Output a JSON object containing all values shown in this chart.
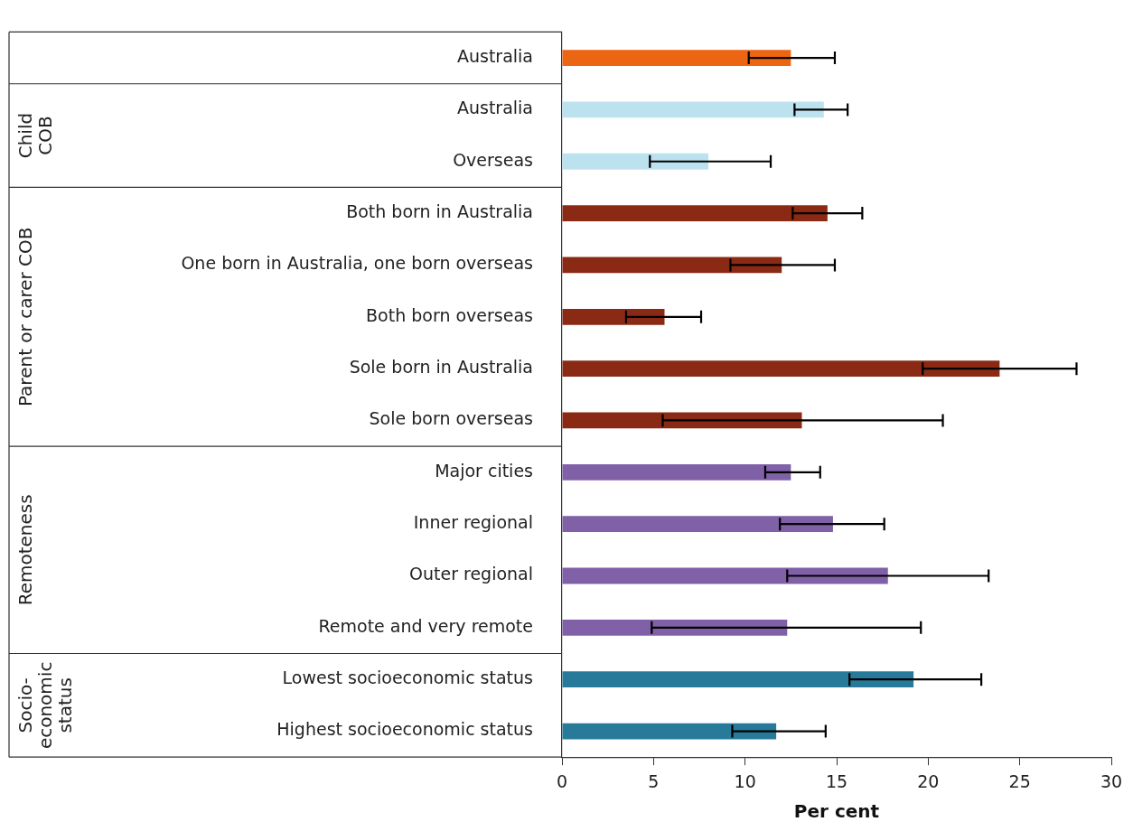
{
  "chart_data": {
    "type": "bar",
    "orientation": "horizontal",
    "xlabel": "Per cent",
    "categories": [
      "Australia",
      "Australia",
      "Overseas",
      "Both born in Australia",
      "One born in Australia, one born overseas",
      "Both born overseas",
      "Sole born in Australia",
      "Sole born overseas",
      "Major cities",
      "Inner regional",
      "Outer regional",
      "Remote and very remote",
      "Lowest socioeconomic status",
      "Highest socioeconomic status"
    ],
    "series": [
      {
        "color": "#ec6513",
        "values": [
          12.5,
          null,
          null,
          null,
          null,
          null,
          null,
          null,
          null,
          null,
          null,
          null,
          null,
          null
        ],
        "errors": [
          [
            10.2,
            14.9
          ],
          null,
          null,
          null,
          null,
          null,
          null,
          null,
          null,
          null,
          null,
          null,
          null,
          null
        ]
      },
      {
        "color": "#bde2ef",
        "values": [
          null,
          14.3,
          8.0,
          null,
          null,
          null,
          null,
          null,
          null,
          null,
          null,
          null,
          null,
          null
        ],
        "errors": [
          null,
          [
            12.7,
            15.6
          ],
          [
            4.8,
            11.4
          ],
          null,
          null,
          null,
          null,
          null,
          null,
          null,
          null,
          null,
          null,
          null
        ]
      },
      {
        "color": "#8b2a14",
        "values": [
          null,
          null,
          null,
          14.5,
          12.0,
          5.6,
          23.9,
          13.1,
          null,
          null,
          null,
          null,
          null,
          null
        ],
        "errors": [
          null,
          null,
          null,
          [
            12.6,
            16.4
          ],
          [
            9.2,
            14.9
          ],
          [
            3.5,
            7.6
          ],
          [
            19.7,
            28.1
          ],
          [
            5.5,
            20.8
          ],
          null,
          null,
          null,
          null,
          null,
          null
        ]
      },
      {
        "color": "#8061a8",
        "values": [
          null,
          null,
          null,
          null,
          null,
          null,
          null,
          null,
          12.5,
          14.8,
          17.8,
          12.3,
          null,
          null
        ],
        "errors": [
          null,
          null,
          null,
          null,
          null,
          null,
          null,
          null,
          [
            11.1,
            14.1
          ],
          [
            11.9,
            17.6
          ],
          [
            12.3,
            23.3
          ],
          [
            4.9,
            19.6
          ],
          null,
          null
        ]
      },
      {
        "color": "#277a99",
        "values": [
          null,
          null,
          null,
          null,
          null,
          null,
          null,
          null,
          null,
          null,
          null,
          null,
          19.2,
          11.7
        ],
        "errors": [
          null,
          null,
          null,
          null,
          null,
          null,
          null,
          null,
          null,
          null,
          null,
          null,
          [
            15.7,
            22.9
          ],
          [
            9.3,
            14.4
          ]
        ]
      }
    ],
    "annotations": [
      "Child\nCOB",
      "Parent or carer COB",
      "Remoteness",
      "Socio-\neconomic\nstatus"
    ],
    "xlim": [
      0,
      30
    ],
    "xticks": [
      0,
      5,
      10,
      15,
      20,
      25,
      30
    ],
    "grid": false,
    "legend": false
  }
}
